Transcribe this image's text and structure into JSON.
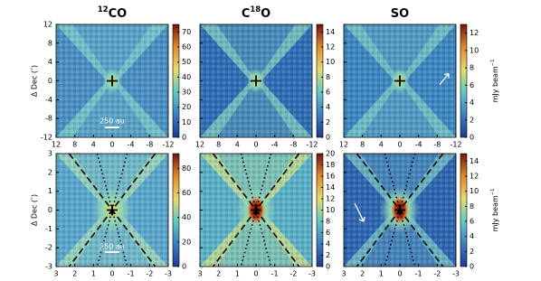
{
  "chart_data": [
    {
      "type": "image",
      "title": [
        {
          "text": "12",
          "sup": true
        },
        {
          "text": "CO"
        }
      ],
      "ylabel": "Δ Dec (″)",
      "annotation": "250 au",
      "xlim": [
        12,
        -12
      ],
      "xticks": [
        12,
        8,
        4,
        0,
        -4,
        -8,
        -12
      ],
      "ylim": [
        -12,
        12
      ],
      "yticks": [
        12,
        8,
        4,
        0,
        -4,
        -8,
        -12
      ],
      "clim": [
        0,
        75
      ],
      "cticks": [
        0,
        10,
        20,
        30,
        40,
        50,
        60,
        70
      ]
    },
    {
      "type": "image",
      "title": [
        {
          "text": "C"
        },
        {
          "text": "18",
          "sup": true
        },
        {
          "text": "O"
        }
      ],
      "xlim": [
        12,
        -12
      ],
      "xticks": [
        12,
        8,
        4,
        0,
        -4,
        -8,
        -12
      ],
      "ylim": [
        -12,
        12
      ],
      "yticks": [
        12,
        8,
        4,
        0,
        -4,
        -8,
        -12
      ],
      "clim": [
        0,
        15
      ],
      "cticks": [
        0,
        2,
        4,
        6,
        8,
        10,
        12,
        14
      ]
    },
    {
      "type": "image",
      "title": [
        {
          "text": "SO"
        }
      ],
      "clabel": [
        {
          "text": "mJy beam"
        },
        {
          "text": "−1",
          "sup": true
        }
      ],
      "xlim": [
        12,
        -12
      ],
      "xticks": [
        12,
        8,
        4,
        0,
        -4,
        -8,
        -12
      ],
      "ylim": [
        -12,
        12
      ],
      "yticks": [
        12,
        8,
        4,
        0,
        -4,
        -8,
        -12
      ],
      "clim": [
        0,
        13
      ],
      "cticks": [
        0,
        2,
        4,
        6,
        8,
        10,
        12
      ]
    },
    {
      "type": "image",
      "ylabel": "Δ Dec (″)",
      "annotation": "250 au",
      "xlim": [
        3,
        -3
      ],
      "xticks": [
        3,
        2,
        1,
        0,
        -1,
        -2,
        -3
      ],
      "ylim": [
        -3,
        3
      ],
      "yticks": [
        3,
        2,
        1,
        0,
        -1,
        -2,
        -3
      ],
      "clim": [
        0,
        92
      ],
      "cticks": [
        0,
        20,
        40,
        60,
        80
      ]
    },
    {
      "type": "image",
      "xlim": [
        3,
        -3
      ],
      "xticks": [
        3,
        2,
        1,
        0,
        -1,
        -2,
        -3
      ],
      "ylim": [
        -3,
        3
      ],
      "yticks": [
        3,
        2,
        1,
        0,
        -1,
        -2,
        -3
      ],
      "clim": [
        0,
        20
      ],
      "cticks": [
        0,
        2,
        4,
        6,
        8,
        10,
        12,
        14,
        16,
        18,
        20
      ]
    },
    {
      "type": "image",
      "clabel": [
        {
          "text": "mJy beam"
        },
        {
          "text": "−1",
          "sup": true
        }
      ],
      "xlim": [
        3,
        -3
      ],
      "xticks": [
        3,
        2,
        1,
        0,
        -1,
        -2,
        -3
      ],
      "ylim": [
        -3,
        3
      ],
      "yticks": [
        3,
        2,
        1,
        0,
        -1,
        -2,
        -3
      ],
      "clim": [
        0,
        15
      ],
      "cticks": [
        0,
        2,
        4,
        6,
        8,
        10,
        12,
        14
      ]
    }
  ]
}
